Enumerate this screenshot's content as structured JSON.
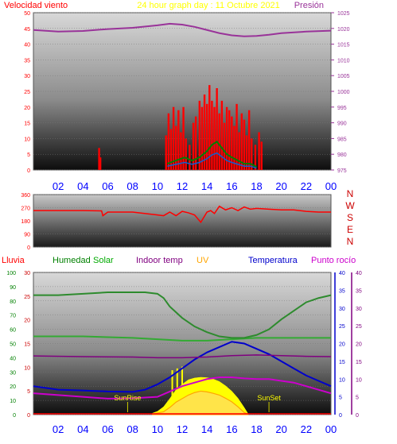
{
  "header": {
    "left_title": "Velocidad viento",
    "center_title": "24 hour graph day : 11 Octubre 2021",
    "right_title": "Presión"
  },
  "compass": [
    "N",
    "W",
    "S",
    "E",
    "N"
  ],
  "legend": {
    "rain": "Lluvia",
    "humidity": "Humedad",
    "solar": "Solar",
    "indoor": "Indoor temp",
    "uv": "UV",
    "temperature": "Temperatura",
    "dewpoint": "Punto rocío",
    "sunrise": "SunRise",
    "sunset": "SunSet"
  },
  "colors": {
    "wind_gust": "#ff0000",
    "wind_avg": "#008000",
    "wind_dir": "#ff0000",
    "pressure": "#993399",
    "humidity": "#2e8b2e",
    "solar": "#ffff00",
    "uv": "#ffa500",
    "temperature": "#0000cc",
    "dewpoint": "#cc00cc",
    "indoor": "#800080",
    "axis_hours": "#0000ff"
  },
  "chart_data": [
    {
      "type": "line",
      "name": "wind-pressure",
      "x_ticks": [
        "02",
        "04",
        "06",
        "08",
        "10",
        "12",
        "14",
        "16",
        "18",
        "20",
        "22",
        "00"
      ],
      "xlim": [
        0,
        24
      ],
      "ylim_left": [
        0,
        50
      ],
      "yticks_left": [
        0,
        5,
        10,
        15,
        20,
        25,
        30,
        35,
        40,
        45,
        50
      ],
      "ylim_right": [
        975,
        1025
      ],
      "yticks_right": [
        975,
        980,
        985,
        990,
        995,
        1000,
        1005,
        1010,
        1015,
        1020,
        1025
      ],
      "series": [
        {
          "name": "Velocidad viento",
          "x": [
            5.3,
            5.4,
            10.7,
            10.9,
            11.1,
            11.3,
            11.5,
            11.7,
            11.9,
            12.1,
            12.3,
            12.6,
            12.9,
            13.1,
            13.4,
            13.6,
            13.8,
            14.0,
            14.2,
            14.4,
            14.6,
            14.8,
            15.0,
            15.2,
            15.4,
            15.6,
            15.8,
            16.0,
            16.2,
            16.4,
            16.6,
            16.8,
            17.0,
            17.2,
            17.4,
            17.6,
            17.9,
            18.2,
            18.4
          ],
          "values": [
            7,
            4,
            11,
            18,
            13,
            20,
            14,
            19,
            12,
            20,
            10,
            8,
            15,
            17,
            22,
            20,
            24,
            21,
            27,
            22,
            20,
            26,
            18,
            22,
            15,
            20,
            19,
            17,
            14,
            21,
            12,
            18,
            16,
            11,
            19,
            10,
            8,
            12,
            9
          ]
        },
        {
          "name": "wind-average",
          "x": [
            10.8,
            11.5,
            12.2,
            12.8,
            13.4,
            14.0,
            14.4,
            14.8,
            15.2,
            15.6,
            16.0,
            16.5,
            17.0,
            17.5,
            18.0
          ],
          "values": [
            2,
            3,
            4,
            3,
            4,
            6,
            8,
            9,
            7,
            5,
            4,
            3,
            2,
            2,
            1
          ]
        },
        {
          "name": "Presión",
          "x": [
            0,
            2,
            4,
            6,
            8,
            10,
            11,
            12,
            13,
            14,
            15,
            16,
            17,
            18,
            19,
            20,
            22,
            24
          ],
          "values": [
            1019.5,
            1019.0,
            1019.2,
            1019.8,
            1020.2,
            1021.0,
            1021.5,
            1021.2,
            1020.5,
            1019.5,
            1018.5,
            1017.8,
            1017.5,
            1017.6,
            1018.0,
            1018.5,
            1019.0,
            1019.3
          ]
        }
      ]
    },
    {
      "type": "line",
      "name": "wind-direction",
      "x_ticks": [],
      "xlim": [
        0,
        24
      ],
      "ylim": [
        0,
        360
      ],
      "yticks": [
        0,
        90,
        180,
        270,
        360
      ],
      "series": [
        {
          "name": "wind-direction",
          "x": [
            0,
            2,
            4,
            5.5,
            5.6,
            6,
            8,
            10,
            10.5,
            11,
            11.5,
            12,
            12.5,
            13,
            13.5,
            14,
            14.3,
            14.6,
            15,
            15.5,
            16,
            16.5,
            17,
            17.5,
            18,
            19,
            20,
            21,
            22,
            23,
            24
          ],
          "values": [
            250,
            250,
            250,
            248,
            215,
            240,
            240,
            220,
            215,
            240,
            215,
            245,
            235,
            220,
            170,
            240,
            250,
            230,
            280,
            255,
            270,
            250,
            275,
            260,
            265,
            260,
            255,
            255,
            245,
            240,
            240
          ]
        }
      ]
    },
    {
      "type": "line",
      "name": "temperature-humidity-solar",
      "x_ticks": [
        "02",
        "04",
        "06",
        "08",
        "10",
        "12",
        "14",
        "16",
        "18",
        "20",
        "22",
        "00"
      ],
      "xlim": [
        0,
        24
      ],
      "ylim_rain": [
        0,
        30
      ],
      "yticks_rain": [
        0,
        5,
        10,
        15,
        20,
        25,
        30
      ],
      "ylim_humidity": [
        0,
        100
      ],
      "yticks_humidity": [
        0,
        10,
        20,
        30,
        40,
        50,
        60,
        70,
        80,
        90,
        100
      ],
      "ylim_temp": [
        0,
        40
      ],
      "yticks_temp": [
        0,
        5,
        10,
        15,
        20,
        25,
        30,
        35,
        40
      ],
      "series": [
        {
          "name": "Humedad",
          "x": [
            0,
            2,
            4,
            6,
            8,
            9,
            10,
            10.5,
            11,
            12,
            13,
            14,
            15,
            16,
            17,
            18,
            19,
            20,
            21,
            22,
            23,
            24
          ],
          "values": [
            84,
            84,
            85,
            86,
            86,
            86,
            85,
            82,
            76,
            68,
            62,
            58,
            55,
            54,
            54,
            56,
            60,
            67,
            73,
            79,
            82,
            84
          ]
        },
        {
          "name": "Temperatura",
          "x": [
            0,
            2,
            4,
            6,
            8,
            9,
            10,
            11,
            12,
            13,
            14,
            15,
            16,
            17,
            18,
            19,
            20,
            21,
            22,
            23,
            24
          ],
          "values": [
            8.0,
            7.0,
            6.8,
            6.5,
            6.4,
            7.0,
            8.5,
            10.5,
            13.0,
            15.5,
            17.5,
            19.0,
            20.5,
            20.0,
            18.5,
            17.0,
            15.0,
            13.0,
            11.0,
            9.5,
            8.0
          ],
          "axis": "temp"
        },
        {
          "name": "Punto rocío",
          "x": [
            0,
            2,
            4,
            6,
            8,
            10,
            11,
            12,
            13,
            14,
            15,
            16,
            17,
            18,
            19,
            20,
            21,
            22,
            23,
            24
          ],
          "values": [
            6.0,
            5.5,
            5.0,
            4.5,
            4.6,
            5.0,
            6.5,
            8.0,
            9.0,
            10.0,
            10.5,
            10.5,
            10.2,
            10.0,
            10.0,
            9.5,
            9.0,
            8.0,
            7.0,
            6.0
          ],
          "axis": "temp"
        },
        {
          "name": "Indoor temp",
          "x": [
            0,
            4,
            8,
            10,
            12,
            14,
            16,
            18,
            20,
            22,
            24
          ],
          "values": [
            16.5,
            16.3,
            16.2,
            16.0,
            16.0,
            16.2,
            16.6,
            16.8,
            16.6,
            16.4,
            16.3
          ],
          "axis": "temp"
        },
        {
          "name": "humidity-indoor",
          "x": [
            0,
            4,
            8,
            10,
            12,
            14,
            16,
            18,
            20,
            22,
            24
          ],
          "values": [
            55,
            55,
            54,
            53,
            52,
            52,
            53,
            54,
            54,
            54,
            54
          ],
          "axis": "humidity"
        },
        {
          "name": "Solar",
          "x": [
            9.6,
            10.0,
            10.5,
            11.0,
            11.5,
            12.0,
            12.5,
            13.0,
            13.5,
            14.0,
            14.5,
            15.0,
            15.5,
            16.0,
            16.5,
            17.0,
            17.3
          ],
          "values": [
            0.4,
            0.9,
            2.2,
            4.5,
            7.0,
            8.5,
            9.8,
            10.3,
            10.5,
            10.4,
            10.0,
            9.3,
            8.1,
            6.6,
            4.6,
            2.0,
            0.3
          ],
          "axis": "temp",
          "spikes_x": [
            11.2,
            11.6,
            12.0
          ],
          "spikes_values": [
            12.5,
            13.0,
            13.5
          ]
        },
        {
          "name": "UV",
          "x": [
            9.6,
            10.5,
            11.0,
            11.5,
            12.0,
            12.5,
            13.0,
            13.5,
            14.0,
            14.5,
            15.0,
            15.5,
            16.0,
            16.5,
            17.0,
            17.3
          ],
          "values": [
            0.2,
            0.8,
            2.0,
            3.5,
            4.5,
            5.5,
            6.2,
            6.6,
            6.4,
            6.0,
            5.5,
            4.6,
            3.6,
            2.2,
            0.6,
            0.2
          ],
          "axis": "temp"
        }
      ],
      "annotations": [
        {
          "text": "SunRise",
          "x": 7.6
        },
        {
          "text": "SunSet",
          "x": 19.0
        }
      ]
    }
  ]
}
